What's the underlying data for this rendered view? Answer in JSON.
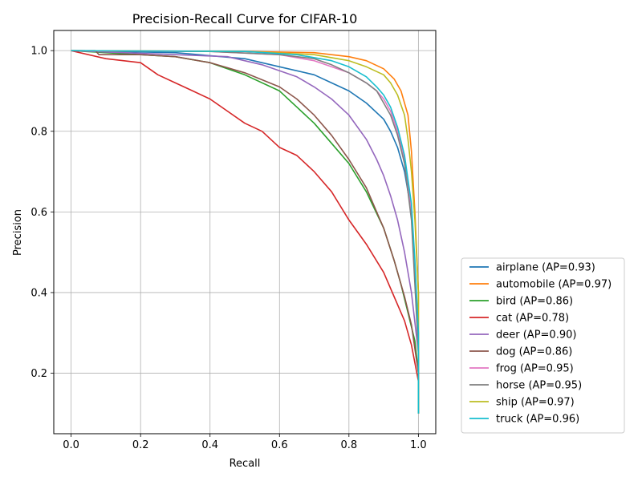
{
  "chart_data": {
    "type": "line",
    "title": "Precision-Recall Curve for CIFAR-10",
    "xlabel": "Recall",
    "ylabel": "Precision",
    "xlim": [
      -0.05,
      1.05
    ],
    "ylim": [
      0.05,
      1.05
    ],
    "xticks": [
      "0.0",
      "0.2",
      "0.4",
      "0.6",
      "0.8",
      "1.0"
    ],
    "yticks": [
      "0.2",
      "0.4",
      "0.6",
      "0.8",
      "1.0"
    ],
    "grid": true,
    "legend_position": "lower-right outside",
    "series": [
      {
        "name": "airplane (AP=0.93)",
        "color": "#1f77b4",
        "x": [
          0,
          0.3,
          0.5,
          0.6,
          0.7,
          0.75,
          0.8,
          0.85,
          0.9,
          0.92,
          0.94,
          0.96,
          0.98,
          0.99,
          1.0,
          1.0
        ],
        "y": [
          1.0,
          0.995,
          0.98,
          0.96,
          0.94,
          0.92,
          0.9,
          0.87,
          0.83,
          0.8,
          0.76,
          0.7,
          0.6,
          0.45,
          0.3,
          0.1
        ]
      },
      {
        "name": "automobile (AP=0.97)",
        "color": "#ff7f0e",
        "x": [
          0,
          0.5,
          0.7,
          0.8,
          0.85,
          0.9,
          0.93,
          0.95,
          0.97,
          0.98,
          0.99,
          1.0,
          1.0
        ],
        "y": [
          1.0,
          0.998,
          0.995,
          0.985,
          0.975,
          0.955,
          0.93,
          0.9,
          0.84,
          0.75,
          0.6,
          0.4,
          0.1
        ]
      },
      {
        "name": "bird (AP=0.86)",
        "color": "#2ca02c",
        "x": [
          0,
          0.2,
          0.3,
          0.4,
          0.5,
          0.6,
          0.65,
          0.7,
          0.75,
          0.8,
          0.85,
          0.9,
          0.93,
          0.95,
          0.97,
          0.99,
          1.0,
          1.0
        ],
        "y": [
          1.0,
          0.99,
          0.985,
          0.97,
          0.94,
          0.9,
          0.86,
          0.82,
          0.77,
          0.72,
          0.65,
          0.56,
          0.48,
          0.42,
          0.35,
          0.28,
          0.2,
          0.1
        ]
      },
      {
        "name": "cat (AP=0.78)",
        "color": "#d62728",
        "x": [
          0,
          0.1,
          0.2,
          0.25,
          0.3,
          0.35,
          0.4,
          0.45,
          0.5,
          0.55,
          0.6,
          0.65,
          0.7,
          0.75,
          0.8,
          0.85,
          0.9,
          0.93,
          0.96,
          0.98,
          1.0,
          1.0
        ],
        "y": [
          1.0,
          0.98,
          0.97,
          0.94,
          0.92,
          0.9,
          0.88,
          0.85,
          0.82,
          0.8,
          0.76,
          0.74,
          0.7,
          0.65,
          0.58,
          0.52,
          0.45,
          0.39,
          0.33,
          0.27,
          0.18,
          0.1
        ]
      },
      {
        "name": "deer (AP=0.90)",
        "color": "#9467bd",
        "x": [
          0,
          0.3,
          0.45,
          0.55,
          0.6,
          0.65,
          0.7,
          0.75,
          0.8,
          0.85,
          0.88,
          0.9,
          0.92,
          0.94,
          0.96,
          0.98,
          1.0,
          1.0
        ],
        "y": [
          1.0,
          0.99,
          0.985,
          0.965,
          0.95,
          0.935,
          0.91,
          0.88,
          0.84,
          0.78,
          0.73,
          0.69,
          0.64,
          0.58,
          0.5,
          0.4,
          0.25,
          0.1
        ]
      },
      {
        "name": "dog (AP=0.86)",
        "color": "#8c564b",
        "x": [
          0,
          0.07,
          0.08,
          0.2,
          0.3,
          0.4,
          0.5,
          0.6,
          0.65,
          0.7,
          0.75,
          0.8,
          0.85,
          0.88,
          0.9,
          0.93,
          0.96,
          0.98,
          1.0,
          1.0
        ],
        "y": [
          1.0,
          1.0,
          0.99,
          0.99,
          0.985,
          0.97,
          0.945,
          0.91,
          0.88,
          0.84,
          0.79,
          0.73,
          0.66,
          0.6,
          0.56,
          0.48,
          0.39,
          0.32,
          0.2,
          0.1
        ]
      },
      {
        "name": "frog (AP=0.95)",
        "color": "#e377c2",
        "x": [
          0,
          0.4,
          0.6,
          0.7,
          0.75,
          0.8,
          0.85,
          0.88,
          0.9,
          0.92,
          0.94,
          0.96,
          0.98,
          0.99,
          1.0,
          1.0
        ],
        "y": [
          1.0,
          0.998,
          0.99,
          0.975,
          0.96,
          0.945,
          0.92,
          0.9,
          0.88,
          0.85,
          0.8,
          0.73,
          0.6,
          0.45,
          0.25,
          0.1
        ]
      },
      {
        "name": "horse (AP=0.95)",
        "color": "#7f7f7f",
        "x": [
          0,
          0.4,
          0.6,
          0.7,
          0.75,
          0.8,
          0.85,
          0.88,
          0.9,
          0.92,
          0.94,
          0.96,
          0.98,
          0.99,
          1.0,
          1.0
        ],
        "y": [
          1.0,
          0.998,
          0.99,
          0.98,
          0.965,
          0.945,
          0.92,
          0.9,
          0.87,
          0.84,
          0.79,
          0.72,
          0.58,
          0.42,
          0.25,
          0.1
        ]
      },
      {
        "name": "ship (AP=0.97)",
        "color": "#bcbd22",
        "x": [
          0,
          0.5,
          0.7,
          0.8,
          0.85,
          0.9,
          0.92,
          0.94,
          0.96,
          0.97,
          0.98,
          0.99,
          1.0,
          1.0
        ],
        "y": [
          1.0,
          0.998,
          0.99,
          0.975,
          0.96,
          0.94,
          0.92,
          0.89,
          0.84,
          0.78,
          0.7,
          0.58,
          0.4,
          0.1
        ]
      },
      {
        "name": "truck (AP=0.96)",
        "color": "#17becf",
        "x": [
          0,
          0.5,
          0.65,
          0.75,
          0.8,
          0.85,
          0.88,
          0.9,
          0.92,
          0.94,
          0.96,
          0.98,
          0.99,
          1.0,
          1.0
        ],
        "y": [
          1.0,
          0.998,
          0.99,
          0.975,
          0.96,
          0.935,
          0.91,
          0.89,
          0.86,
          0.81,
          0.74,
          0.62,
          0.48,
          0.3,
          0.1
        ]
      }
    ]
  }
}
